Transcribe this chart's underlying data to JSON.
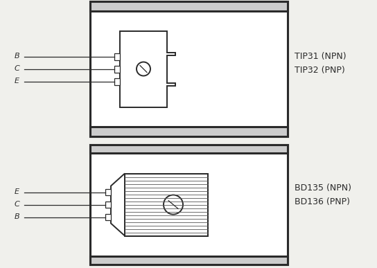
{
  "bg_color": "#f0f0ec",
  "line_color": "#2a2a2a",
  "top_text_line1": "TIP31 (NPN)",
  "top_text_line2": "TIP32 (PNP)",
  "top_labels": [
    "B",
    "C",
    "E"
  ],
  "bot_text_line1": "BD135 (NPN)",
  "bot_text_line2": "BD136 (PNP)",
  "bot_labels": [
    "E",
    "C",
    "B"
  ]
}
